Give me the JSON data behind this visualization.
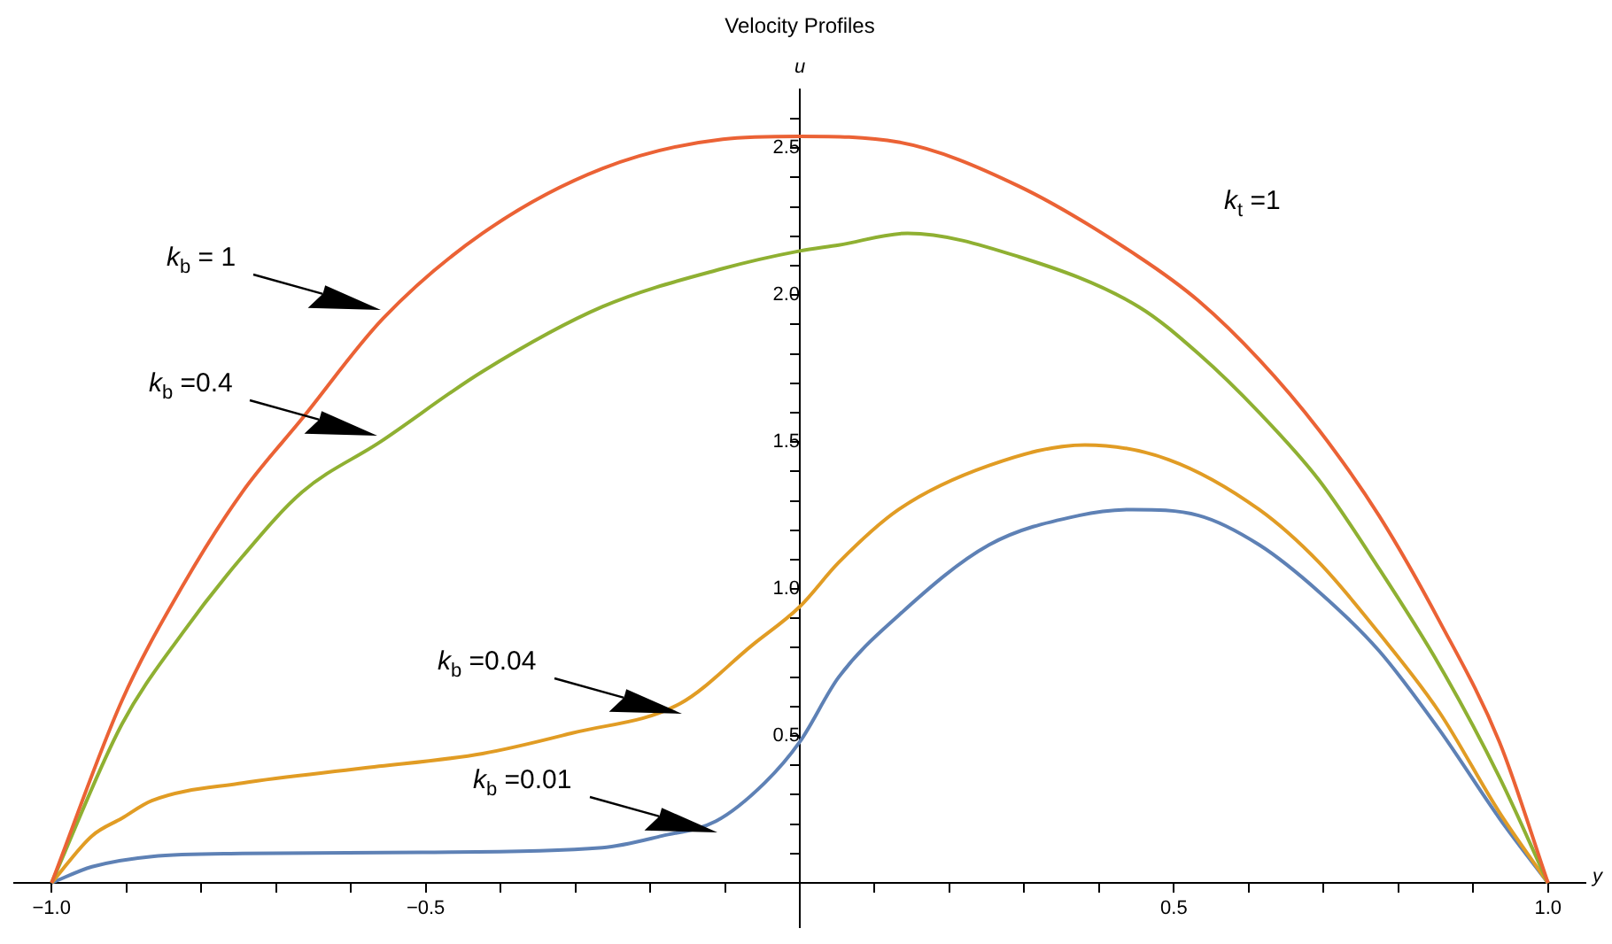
{
  "chart_data": {
    "type": "line",
    "title": "Velocity Profiles",
    "xlabel": "y",
    "ylabel": "u",
    "xlim": [
      -1.05,
      1.05
    ],
    "ylim": [
      -0.15,
      2.7
    ],
    "xticks": [
      {
        "value": -1,
        "label": "−1.0"
      },
      {
        "value": -0.9,
        "label": null
      },
      {
        "value": -0.8,
        "label": null
      },
      {
        "value": -0.7,
        "label": null
      },
      {
        "value": -0.6,
        "label": null
      },
      {
        "value": -0.5,
        "label": "−0.5"
      },
      {
        "value": -0.4,
        "label": null
      },
      {
        "value": -0.3,
        "label": null
      },
      {
        "value": -0.2,
        "label": null
      },
      {
        "value": -0.1,
        "label": null
      },
      {
        "value": 0.1,
        "label": null
      },
      {
        "value": 0.2,
        "label": null
      },
      {
        "value": 0.3,
        "label": null
      },
      {
        "value": 0.4,
        "label": null
      },
      0.5,
      {
        "value": 0.6,
        "label": null
      },
      {
        "value": 0.7,
        "label": null
      },
      {
        "value": 0.8,
        "label": null
      },
      {
        "value": 0.9,
        "label": null
      },
      {
        "value": 1,
        "label": "1.0"
      }
    ],
    "yticks": [
      {
        "value": 0.1,
        "label": null
      },
      {
        "value": 0.2,
        "label": null
      },
      {
        "value": 0.3,
        "label": null
      },
      {
        "value": 0.4,
        "label": null
      },
      0.5,
      {
        "value": 0.6,
        "label": null
      },
      {
        "value": 0.7,
        "label": null
      },
      {
        "value": 0.8,
        "label": null
      },
      {
        "value": 0.9,
        "label": null
      },
      {
        "value": 1,
        "label": "1.0"
      },
      {
        "value": 1.1,
        "label": null
      },
      {
        "value": 1.2,
        "label": null
      },
      {
        "value": 1.3,
        "label": null
      },
      {
        "value": 1.4,
        "label": null
      },
      1.5,
      {
        "value": 1.6,
        "label": null
      },
      {
        "value": 1.7,
        "label": null
      },
      {
        "value": 1.8,
        "label": null
      },
      {
        "value": 1.9,
        "label": null
      },
      {
        "value": 2,
        "label": "2.0"
      },
      {
        "value": 2.1,
        "label": null
      },
      {
        "value": 2.2,
        "label": null
      },
      {
        "value": 2.3,
        "label": null
      },
      {
        "value": 2.4,
        "label": null
      },
      2.5,
      {
        "value": 2.6,
        "label": null
      }
    ],
    "grid": false,
    "legend": false,
    "marker": "none",
    "line_style": "solid",
    "series": [
      {
        "color": "#eb6235",
        "x": [
          -1,
          -0.906,
          -0.825,
          -0.745,
          -0.665,
          -0.557,
          -0.424,
          -0.264,
          -0.103,
          0,
          0.132,
          0.293,
          0.453,
          0.533,
          0.614,
          0.694,
          0.774,
          0.855,
          0.935,
          1
        ],
        "values": [
          0,
          0.62,
          1.01,
          1.33,
          1.58,
          1.92,
          2.21,
          2.43,
          2.53,
          2.54,
          2.52,
          2.37,
          2.13,
          1.98,
          1.78,
          1.54,
          1.25,
          0.89,
          0.48,
          0
        ]
      },
      {
        "color": "#8fb032",
        "x": [
          -1,
          -0.906,
          -0.825,
          -0.745,
          -0.665,
          -0.561,
          -0.424,
          -0.264,
          -0.103,
          0,
          0.052,
          0.144,
          0.293,
          0.453,
          0.533,
          0.614,
          0.694,
          0.774,
          0.855,
          0.935,
          1
        ],
        "values": [
          0,
          0.54,
          0.85,
          1.11,
          1.33,
          1.5,
          1.74,
          1.96,
          2.09,
          2.15,
          2.17,
          2.21,
          2.13,
          1.96,
          1.8,
          1.6,
          1.37,
          1.07,
          0.74,
          0.36,
          0
        ]
      },
      {
        "color": "#e19c24",
        "x": [
          -1,
          -0.946,
          -0.906,
          -0.866,
          -0.745,
          -0.585,
          -0.424,
          -0.304,
          -0.16,
          -0.063,
          0,
          0.052,
          0.132,
          0.253,
          0.381,
          0.493,
          0.614,
          0.694,
          0.774,
          0.855,
          0.935,
          1
        ],
        "values": [
          0,
          0.16,
          0.22,
          0.28,
          0.34,
          0.39,
          0.44,
          0.51,
          0.61,
          0.81,
          0.94,
          1.09,
          1.27,
          1.42,
          1.49,
          1.44,
          1.27,
          1.09,
          0.85,
          0.58,
          0.24,
          0
        ]
      },
      {
        "color": "#5e81b5",
        "x": [
          -1,
          -0.946,
          -0.866,
          -0.745,
          -0.505,
          -0.264,
          -0.184,
          -0.112,
          -0.047,
          0,
          0.052,
          0.132,
          0.253,
          0.373,
          0.445,
          0.533,
          0.614,
          0.694,
          0.774,
          0.855,
          0.935,
          1
        ],
        "values": [
          0,
          0.055,
          0.09,
          0.1,
          0.104,
          0.12,
          0.16,
          0.21,
          0.34,
          0.48,
          0.7,
          0.91,
          1.15,
          1.25,
          1.27,
          1.25,
          1.15,
          0.99,
          0.79,
          0.52,
          0.22,
          0
        ]
      }
    ],
    "annotations": [
      "k$_{b}$ = 1",
      "k$_{b}$ =0.4",
      "k$_{b}$ =0.04",
      "k$_{b}$ =0.01",
      "k$_{t}$ =1"
    ]
  }
}
